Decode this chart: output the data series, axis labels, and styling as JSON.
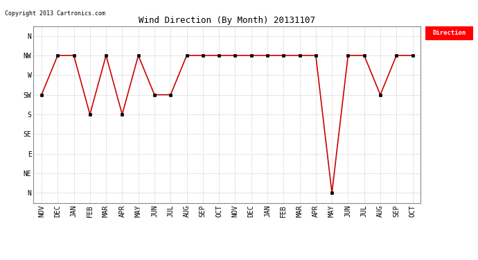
{
  "title": "Wind Direction (By Month) 20131107",
  "copyright": "Copyright 2013 Cartronics.com",
  "legend_label": "Direction",
  "legend_bg": "#ff0000",
  "legend_text_color": "#ffffff",
  "background_color": "#ffffff",
  "plot_bg_color": "#ffffff",
  "line_color": "#cc0000",
  "marker_color": "#000000",
  "grid_color": "#cccccc",
  "x_labels": [
    "NOV",
    "DEC",
    "JAN",
    "FEB",
    "MAR",
    "APR",
    "MAY",
    "JUN",
    "JUL",
    "AUG",
    "SEP",
    "OCT",
    "NOV",
    "DEC",
    "JAN",
    "FEB",
    "MAR",
    "APR",
    "MAY",
    "JUN",
    "JUL",
    "AUG",
    "SEP",
    "OCT"
  ],
  "y_ticks": [
    0,
    1,
    2,
    3,
    4,
    5,
    6,
    7,
    8
  ],
  "y_tick_labels": [
    "N",
    "NW",
    "W",
    "SW",
    "S",
    "SE",
    "E",
    "NE",
    "N"
  ],
  "data_values": [
    3,
    1,
    1,
    4,
    1,
    4,
    1,
    3,
    3,
    1,
    1,
    1,
    1,
    1,
    1,
    1,
    1,
    1,
    8,
    1,
    1,
    3,
    1,
    1
  ],
  "title_fontsize": 9,
  "tick_fontsize": 7,
  "copyright_fontsize": 6
}
